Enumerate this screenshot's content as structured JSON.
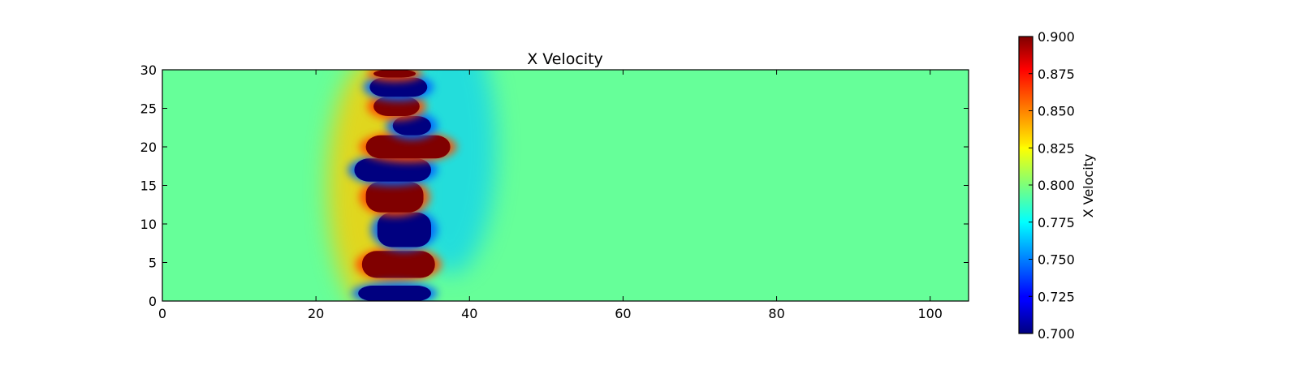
{
  "chart_data": {
    "type": "heatmap",
    "title": "X Velocity",
    "xlabel": "",
    "ylabel": "",
    "xlim": [
      0,
      105
    ],
    "ylim": [
      0,
      30
    ],
    "xticks": [
      0,
      20,
      40,
      60,
      80,
      100
    ],
    "xtick_labels": [
      "0",
      "20",
      "40",
      "60",
      "80",
      "100"
    ],
    "yticks": [
      0,
      5,
      10,
      15,
      20,
      25,
      30
    ],
    "ytick_labels": [
      "0",
      "5",
      "10",
      "15",
      "20",
      "25",
      "30"
    ],
    "colormap": "jet",
    "background_value": 0.795,
    "colorbar": {
      "label": "X Velocity",
      "range": [
        0.7,
        0.9
      ],
      "ticks": [
        0.7,
        0.725,
        0.75,
        0.775,
        0.8,
        0.825,
        0.85,
        0.875,
        0.9
      ],
      "tick_labels": [
        "0.700",
        "0.725",
        "0.750",
        "0.775",
        "0.800",
        "0.825",
        "0.850",
        "0.875",
        "0.900"
      ]
    },
    "features": [
      {
        "kind": "high",
        "x": [
          26.0,
          35.5
        ],
        "y": [
          3.0,
          6.5
        ],
        "value": 0.9
      },
      {
        "kind": "low",
        "x": [
          25.5,
          35.0
        ],
        "y": [
          0.0,
          2.0
        ],
        "value": 0.7
      },
      {
        "kind": "low",
        "x": [
          28.0,
          35.0
        ],
        "y": [
          7.0,
          11.5
        ],
        "value": 0.7
      },
      {
        "kind": "high",
        "x": [
          26.5,
          34.0
        ],
        "y": [
          11.5,
          15.5
        ],
        "value": 0.9
      },
      {
        "kind": "low",
        "x": [
          25.0,
          35.0
        ],
        "y": [
          15.5,
          18.5
        ],
        "value": 0.7
      },
      {
        "kind": "high",
        "x": [
          26.5,
          37.5
        ],
        "y": [
          18.5,
          21.5
        ],
        "value": 0.9
      },
      {
        "kind": "low",
        "x": [
          30.0,
          35.0
        ],
        "y": [
          21.5,
          24.0
        ],
        "value": 0.7
      },
      {
        "kind": "high",
        "x": [
          27.5,
          33.5
        ],
        "y": [
          24.0,
          26.5
        ],
        "value": 0.9
      },
      {
        "kind": "low",
        "x": [
          27.0,
          34.5
        ],
        "y": [
          26.5,
          29.0
        ],
        "value": 0.7
      },
      {
        "kind": "high",
        "x": [
          27.5,
          33.0
        ],
        "y": [
          29.0,
          30.0
        ],
        "value": 0.9
      }
    ]
  }
}
